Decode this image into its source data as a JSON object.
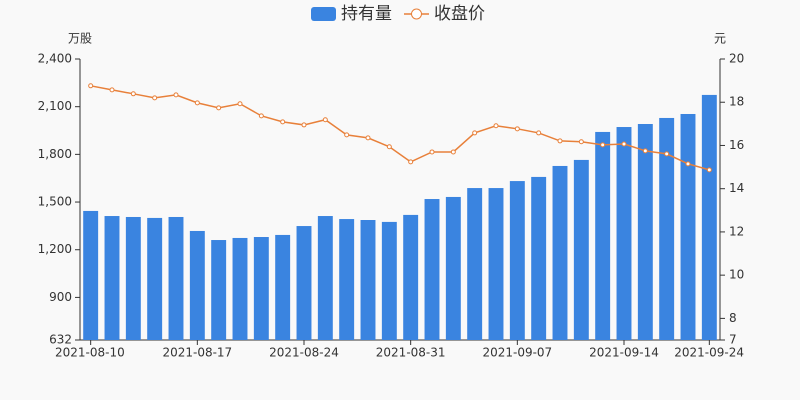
{
  "chart_data": {
    "type": "bar_line",
    "y_unit": "万股",
    "y2_unit": "元",
    "categories": [
      "2021-08-10",
      null,
      null,
      null,
      null,
      "2021-08-17",
      null,
      null,
      null,
      null,
      "2021-08-24",
      null,
      null,
      null,
      null,
      "2021-08-31",
      null,
      null,
      null,
      null,
      "2021-09-07",
      null,
      null,
      null,
      null,
      "2021-09-14",
      null,
      null,
      null,
      "2021-09-24"
    ],
    "series": [
      {
        "name": "持有量",
        "type": "bar",
        "color": "#3a84e0",
        "values": [
          1444,
          1412,
          1406,
          1400,
          1406,
          1318,
          1261,
          1274,
          1280,
          1293,
          1349,
          1412,
          1393,
          1387,
          1375,
          1419,
          1519,
          1532,
          1588,
          1588,
          1632,
          1658,
          1727,
          1765,
          1941,
          1972,
          1991,
          2029,
          2054,
          2174
        ]
      },
      {
        "name": "收盘价",
        "type": "line",
        "axis": "y2",
        "color": "#e8803a",
        "values": [
          18.76,
          18.57,
          18.39,
          18.2,
          18.34,
          17.97,
          17.74,
          17.93,
          17.37,
          17.09,
          16.95,
          17.19,
          16.49,
          16.35,
          15.94,
          15.24,
          15.7,
          15.7,
          16.58,
          16.91,
          16.77,
          16.58,
          16.21,
          16.17,
          16.03,
          16.07,
          15.75,
          15.61,
          15.15,
          14.87
        ]
      }
    ],
    "ylim": [
      632,
      2400
    ],
    "yticks": [
      632,
      900,
      {
        "value": 1200,
        "label": "1,200"
      },
      {
        "value": 1500,
        "label": "1,500"
      },
      {
        "value": 1800,
        "label": "1,800"
      },
      {
        "value": 2100,
        "label": "2,100"
      },
      {
        "value": 2400,
        "label": "2,400"
      }
    ],
    "y2lim": [
      7,
      20
    ],
    "y2ticks": [
      7,
      8,
      10,
      12,
      14,
      16,
      18,
      20
    ],
    "legend": "top"
  }
}
